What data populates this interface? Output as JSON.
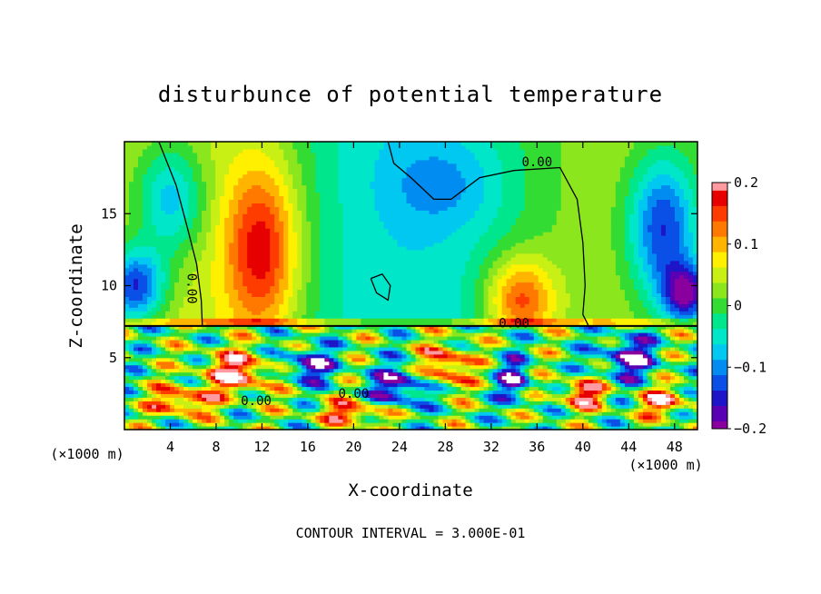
{
  "chart_data": {
    "type": "heatmap",
    "title": "disturbunce of potential temperature",
    "xlabel": "X-coordinate",
    "ylabel": "Z-coordinate",
    "x_unit": "(×1000 m)",
    "y_unit": "(×1000 m)",
    "xlim": [
      0,
      50
    ],
    "ylim": [
      0,
      20
    ],
    "x_ticks": [
      4,
      8,
      12,
      16,
      20,
      24,
      28,
      32,
      36,
      40,
      44,
      48
    ],
    "y_ticks": [
      5,
      10,
      15
    ],
    "colorbar": {
      "range": [
        -0.2,
        0.2
      ],
      "tick_labels": [
        "0.2",
        "0.1",
        "0",
        "−0.1",
        "−0.2"
      ],
      "tick_values": [
        0.2,
        0.1,
        0,
        -0.1,
        -0.2
      ],
      "levels": [
        {
          "v": -0.2,
          "color": "#8a009e"
        },
        {
          "v": -0.175,
          "color": "#5a00b4"
        },
        {
          "v": -0.15,
          "color": "#1e14c8"
        },
        {
          "v": -0.125,
          "color": "#0a50e6"
        },
        {
          "v": -0.1,
          "color": "#008cf0"
        },
        {
          "v": -0.075,
          "color": "#00c8f0"
        },
        {
          "v": -0.05,
          "color": "#00e6c8"
        },
        {
          "v": -0.025,
          "color": "#00e68c"
        },
        {
          "v": 0.0,
          "color": "#32dc32"
        },
        {
          "v": 0.025,
          "color": "#8ce61e"
        },
        {
          "v": 0.05,
          "color": "#c8f014"
        },
        {
          "v": 0.075,
          "color": "#fff000"
        },
        {
          "v": 0.1,
          "color": "#ffb400"
        },
        {
          "v": 0.125,
          "color": "#ff7800"
        },
        {
          "v": 0.15,
          "color": "#ff3c00"
        },
        {
          "v": 0.175,
          "color": "#e60000"
        },
        {
          "v": 0.2,
          "color": "#ff9aa0"
        }
      ]
    },
    "contour_labels": [
      "0.00",
      "0.00",
      "0.00",
      "0.00",
      "0.00"
    ],
    "contour_interval_text": "CONTOUR INTERVAL = 3.000E-01",
    "interface_height": 7.2,
    "upper_features": [
      {
        "x": 12,
        "z": 12.5,
        "sx": 3.2,
        "sz": 6,
        "value": 0.16
      },
      {
        "x": 4,
        "z": 16,
        "sx": 3,
        "sz": 4,
        "value": -0.12
      },
      {
        "x": 1,
        "z": 10,
        "sx": 2.5,
        "sz": 2.5,
        "value": -0.18
      },
      {
        "x": 47,
        "z": 14,
        "sx": 3,
        "sz": 5,
        "value": -0.17
      },
      {
        "x": 49,
        "z": 9.5,
        "sx": 2,
        "sz": 2,
        "value": -0.2
      },
      {
        "x": 34.5,
        "z": 9,
        "sx": 3,
        "sz": 3,
        "value": 0.15
      },
      {
        "x": 28,
        "z": 17,
        "sx": 5,
        "sz": 3,
        "value": -0.05
      }
    ],
    "lower_features": [
      {
        "x": 10,
        "z": 4,
        "sx": 3,
        "sz": 1.5,
        "value": 0.2
      },
      {
        "x": 16,
        "z": 4.5,
        "sx": 2.5,
        "sz": 1.2,
        "value": -0.18
      },
      {
        "x": 5,
        "z": 2,
        "sx": 2.5,
        "sz": 1,
        "value": 0.18
      },
      {
        "x": 24,
        "z": 3,
        "sx": 2.5,
        "sz": 1.5,
        "value": -0.19
      },
      {
        "x": 28,
        "z": 4.5,
        "sx": 2,
        "sz": 1.5,
        "value": 0.2
      },
      {
        "x": 34,
        "z": 3.5,
        "sx": 1.5,
        "sz": 1.5,
        "value": -0.17
      },
      {
        "x": 44,
        "z": 5,
        "sx": 2.5,
        "sz": 1.5,
        "value": -0.2
      },
      {
        "x": 47,
        "z": 2,
        "sx": 2,
        "sz": 1,
        "value": 0.18
      },
      {
        "x": 40,
        "z": 2.5,
        "sx": 2,
        "sz": 1,
        "value": 0.19
      },
      {
        "x": 20,
        "z": 1.2,
        "sx": 3,
        "sz": 0.8,
        "value": 0.17
      }
    ]
  }
}
